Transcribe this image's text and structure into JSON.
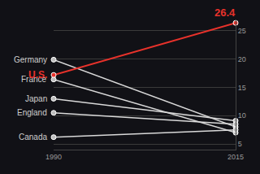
{
  "chart_data": {
    "type": "line",
    "x": [
      1990,
      2015
    ],
    "xlim": [
      1990,
      2015
    ],
    "xticks": [
      1990,
      2015
    ],
    "ylim": [
      4,
      27
    ],
    "yticks": [
      5,
      10,
      15,
      20,
      25
    ],
    "grid": true,
    "marker": "circle",
    "series": [
      {
        "name": "Germany",
        "color": "#d9d9d9",
        "values": [
          19.9,
          8.0
        ]
      },
      {
        "name": "France",
        "color": "#d9d9d9",
        "values": [
          16.4,
          7.0
        ]
      },
      {
        "name": "Japan",
        "color": "#d9d9d9",
        "values": [
          13.0,
          9.1
        ]
      },
      {
        "name": "England",
        "color": "#d9d9d9",
        "values": [
          10.5,
          8.5
        ]
      },
      {
        "name": "Canada",
        "color": "#d9d9d9",
        "values": [
          6.2,
          7.5
        ]
      },
      {
        "name": "U.S.",
        "color": "#e8322b",
        "values": [
          17.2,
          26.4
        ]
      }
    ],
    "annotations": [
      {
        "text": "26.4",
        "x": 2015,
        "y": 26.4,
        "color": "#e8322b"
      }
    ]
  }
}
